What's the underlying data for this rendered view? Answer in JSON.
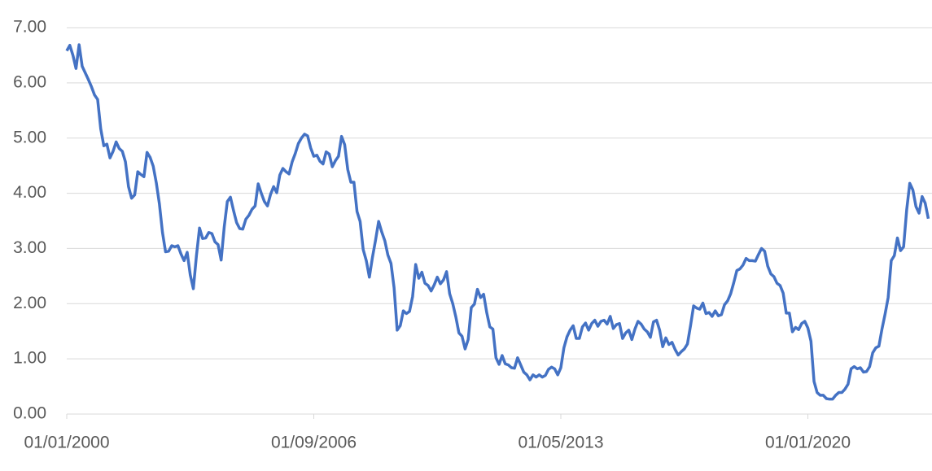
{
  "chart_data": {
    "type": "line",
    "x": [
      "01/01/2000",
      "01/02/2000",
      "01/03/2000",
      "01/04/2000",
      "01/05/2000",
      "01/06/2000",
      "01/07/2000",
      "01/08/2000",
      "01/09/2000",
      "01/10/2000",
      "01/11/2000",
      "01/12/2000",
      "01/01/2001",
      "01/02/2001",
      "01/03/2001",
      "01/04/2001",
      "01/05/2001",
      "01/06/2001",
      "01/07/2001",
      "01/08/2001",
      "01/09/2001",
      "01/10/2001",
      "01/11/2001",
      "01/12/2001",
      "01/01/2002",
      "01/02/2002",
      "01/03/2002",
      "01/04/2002",
      "01/05/2002",
      "01/06/2002",
      "01/07/2002",
      "01/08/2002",
      "01/09/2002",
      "01/10/2002",
      "01/11/2002",
      "01/12/2002",
      "01/01/2003",
      "01/02/2003",
      "01/03/2003",
      "01/04/2003",
      "01/05/2003",
      "01/06/2003",
      "01/07/2003",
      "01/08/2003",
      "01/09/2003",
      "01/10/2003",
      "01/11/2003",
      "01/12/2003",
      "01/01/2004",
      "01/02/2004",
      "01/03/2004",
      "01/04/2004",
      "01/05/2004",
      "01/06/2004",
      "01/07/2004",
      "01/08/2004",
      "01/09/2004",
      "01/10/2004",
      "01/11/2004",
      "01/12/2004",
      "01/01/2005",
      "01/02/2005",
      "01/03/2005",
      "01/04/2005",
      "01/05/2005",
      "01/06/2005",
      "01/07/2005",
      "01/08/2005",
      "01/09/2005",
      "01/10/2005",
      "01/11/2005",
      "01/12/2005",
      "01/01/2006",
      "01/02/2006",
      "01/03/2006",
      "01/04/2006",
      "01/05/2006",
      "01/06/2006",
      "01/07/2006",
      "01/08/2006",
      "01/09/2006",
      "01/10/2006",
      "01/11/2006",
      "01/12/2006",
      "01/01/2007",
      "01/02/2007",
      "01/03/2007",
      "01/04/2007",
      "01/05/2007",
      "01/06/2007",
      "01/07/2007",
      "01/08/2007",
      "01/09/2007",
      "01/10/2007",
      "01/11/2007",
      "01/12/2007",
      "01/01/2008",
      "01/02/2008",
      "01/03/2008",
      "01/04/2008",
      "01/05/2008",
      "01/06/2008",
      "01/07/2008",
      "01/08/2008",
      "01/09/2008",
      "01/10/2008",
      "01/11/2008",
      "01/12/2008",
      "01/01/2009",
      "01/02/2009",
      "01/03/2009",
      "01/04/2009",
      "01/05/2009",
      "01/06/2009",
      "01/07/2009",
      "01/08/2009",
      "01/09/2009",
      "01/10/2009",
      "01/11/2009",
      "01/12/2009",
      "01/01/2010",
      "01/02/2010",
      "01/03/2010",
      "01/04/2010",
      "01/05/2010",
      "01/06/2010",
      "01/07/2010",
      "01/08/2010",
      "01/09/2010",
      "01/10/2010",
      "01/11/2010",
      "01/12/2010",
      "01/01/2011",
      "01/02/2011",
      "01/03/2011",
      "01/04/2011",
      "01/05/2011",
      "01/06/2011",
      "01/07/2011",
      "01/08/2011",
      "01/09/2011",
      "01/10/2011",
      "01/11/2011",
      "01/12/2011",
      "01/01/2012",
      "01/02/2012",
      "01/03/2012",
      "01/04/2012",
      "01/05/2012",
      "01/06/2012",
      "01/07/2012",
      "01/08/2012",
      "01/09/2012",
      "01/10/2012",
      "01/11/2012",
      "01/12/2012",
      "01/01/2013",
      "01/02/2013",
      "01/03/2013",
      "01/04/2013",
      "01/05/2013",
      "01/06/2013",
      "01/07/2013",
      "01/08/2013",
      "01/09/2013",
      "01/10/2013",
      "01/11/2013",
      "01/12/2013",
      "01/01/2014",
      "01/02/2014",
      "01/03/2014",
      "01/04/2014",
      "01/05/2014",
      "01/06/2014",
      "01/07/2014",
      "01/08/2014",
      "01/09/2014",
      "01/10/2014",
      "01/11/2014",
      "01/12/2014",
      "01/01/2015",
      "01/02/2015",
      "01/03/2015",
      "01/04/2015",
      "01/05/2015",
      "01/06/2015",
      "01/07/2015",
      "01/08/2015",
      "01/09/2015",
      "01/10/2015",
      "01/11/2015",
      "01/12/2015",
      "01/01/2016",
      "01/02/2016",
      "01/03/2016",
      "01/04/2016",
      "01/05/2016",
      "01/06/2016",
      "01/07/2016",
      "01/08/2016",
      "01/09/2016",
      "01/10/2016",
      "01/11/2016",
      "01/12/2016",
      "01/01/2017",
      "01/02/2017",
      "01/03/2017",
      "01/04/2017",
      "01/05/2017",
      "01/06/2017",
      "01/07/2017",
      "01/08/2017",
      "01/09/2017",
      "01/10/2017",
      "01/11/2017",
      "01/12/2017",
      "01/01/2018",
      "01/02/2018",
      "01/03/2018",
      "01/04/2018",
      "01/05/2018",
      "01/06/2018",
      "01/07/2018",
      "01/08/2018",
      "01/09/2018",
      "01/10/2018",
      "01/11/2018",
      "01/12/2018",
      "01/01/2019",
      "01/02/2019",
      "01/03/2019",
      "01/04/2019",
      "01/05/2019",
      "01/06/2019",
      "01/07/2019",
      "01/08/2019",
      "01/09/2019",
      "01/10/2019",
      "01/11/2019",
      "01/12/2019",
      "01/01/2020",
      "01/02/2020",
      "01/03/2020",
      "01/04/2020",
      "01/05/2020",
      "01/06/2020",
      "01/07/2020",
      "01/08/2020",
      "01/09/2020",
      "01/10/2020",
      "01/11/2020",
      "01/12/2020",
      "01/01/2021",
      "01/02/2021",
      "01/03/2021",
      "01/04/2021",
      "01/05/2021",
      "01/06/2021",
      "01/07/2021",
      "01/08/2021",
      "01/09/2021",
      "01/10/2021",
      "01/11/2021",
      "01/12/2021",
      "01/01/2022",
      "01/02/2022",
      "01/03/2022",
      "01/04/2022",
      "01/05/2022",
      "01/06/2022",
      "01/07/2022",
      "01/08/2022",
      "01/09/2022",
      "01/10/2022",
      "01/11/2022",
      "01/12/2022",
      "01/01/2023",
      "01/02/2023",
      "01/03/2023",
      "01/04/2023"
    ],
    "color": "#4472c4",
    "values": [
      6.58,
      6.68,
      6.5,
      6.26,
      6.69,
      6.3,
      6.18,
      6.06,
      5.93,
      5.78,
      5.7,
      5.17,
      4.86,
      4.89,
      4.64,
      4.76,
      4.93,
      4.81,
      4.76,
      4.57,
      4.12,
      3.91,
      3.97,
      4.39,
      4.34,
      4.3,
      4.74,
      4.65,
      4.49,
      4.19,
      3.81,
      3.29,
      2.94,
      2.95,
      3.05,
      3.03,
      3.05,
      2.9,
      2.78,
      2.93,
      2.52,
      2.27,
      2.87,
      3.37,
      3.18,
      3.19,
      3.29,
      3.27,
      3.12,
      3.07,
      2.79,
      3.39,
      3.85,
      3.93,
      3.69,
      3.47,
      3.36,
      3.35,
      3.53,
      3.6,
      3.71,
      3.77,
      4.17,
      4.0,
      3.85,
      3.77,
      3.98,
      4.12,
      4.01,
      4.33,
      4.45,
      4.39,
      4.35,
      4.57,
      4.72,
      4.9,
      5.0,
      5.07,
      5.04,
      4.82,
      4.67,
      4.69,
      4.58,
      4.53,
      4.75,
      4.71,
      4.48,
      4.59,
      4.67,
      5.03,
      4.88,
      4.43,
      4.2,
      4.2,
      3.67,
      3.49,
      2.98,
      2.78,
      2.48,
      2.84,
      3.15,
      3.49,
      3.3,
      3.14,
      2.88,
      2.73,
      2.29,
      1.52,
      1.6,
      1.87,
      1.82,
      1.86,
      2.13,
      2.71,
      2.46,
      2.57,
      2.37,
      2.33,
      2.23,
      2.34,
      2.48,
      2.36,
      2.43,
      2.58,
      2.18,
      2.0,
      1.76,
      1.47,
      1.41,
      1.18,
      1.35,
      1.93,
      1.99,
      2.26,
      2.11,
      2.17,
      1.84,
      1.58,
      1.54,
      1.02,
      0.9,
      1.06,
      0.91,
      0.89,
      0.84,
      0.83,
      1.02,
      0.89,
      0.76,
      0.71,
      0.62,
      0.71,
      0.67,
      0.71,
      0.67,
      0.7,
      0.81,
      0.85,
      0.82,
      0.71,
      0.84,
      1.2,
      1.4,
      1.52,
      1.6,
      1.37,
      1.37,
      1.58,
      1.65,
      1.52,
      1.64,
      1.7,
      1.59,
      1.68,
      1.7,
      1.63,
      1.77,
      1.55,
      1.62,
      1.64,
      1.37,
      1.47,
      1.52,
      1.35,
      1.54,
      1.68,
      1.63,
      1.54,
      1.49,
      1.39,
      1.67,
      1.7,
      1.52,
      1.22,
      1.38,
      1.26,
      1.3,
      1.17,
      1.07,
      1.13,
      1.18,
      1.27,
      1.6,
      1.96,
      1.92,
      1.9,
      2.01,
      1.82,
      1.84,
      1.77,
      1.87,
      1.78,
      1.8,
      1.98,
      2.05,
      2.18,
      2.38,
      2.6,
      2.63,
      2.7,
      2.82,
      2.78,
      2.78,
      2.77,
      2.89,
      3.0,
      2.95,
      2.68,
      2.54,
      2.49,
      2.37,
      2.33,
      2.19,
      1.83,
      1.83,
      1.49,
      1.57,
      1.53,
      1.64,
      1.68,
      1.56,
      1.32,
      0.59,
      0.39,
      0.34,
      0.34,
      0.28,
      0.27,
      0.27,
      0.34,
      0.39,
      0.39,
      0.45,
      0.54,
      0.82,
      0.86,
      0.82,
      0.84,
      0.76,
      0.77,
      0.86,
      1.11,
      1.2,
      1.23,
      1.54,
      1.81,
      2.11,
      2.78,
      2.87,
      3.19,
      2.96,
      3.03,
      3.7,
      4.18,
      4.06,
      3.76,
      3.64,
      3.94,
      3.82,
      3.54
    ],
    "xticks": [
      "01/01/2000",
      "01/09/2006",
      "01/05/2013",
      "01/01/2020"
    ],
    "ylim": [
      0,
      7
    ],
    "yticks": [
      {
        "value": 0,
        "label": "0.00"
      },
      {
        "value": 1,
        "label": "1.00"
      },
      {
        "value": 2,
        "label": "2.00"
      },
      {
        "value": 3,
        "label": "3.00"
      },
      {
        "value": 4,
        "label": "4.00"
      },
      {
        "value": 5,
        "label": "5.00"
      },
      {
        "value": 6,
        "label": "6.00"
      },
      {
        "value": 7,
        "label": "7.00"
      }
    ],
    "grid": true
  }
}
